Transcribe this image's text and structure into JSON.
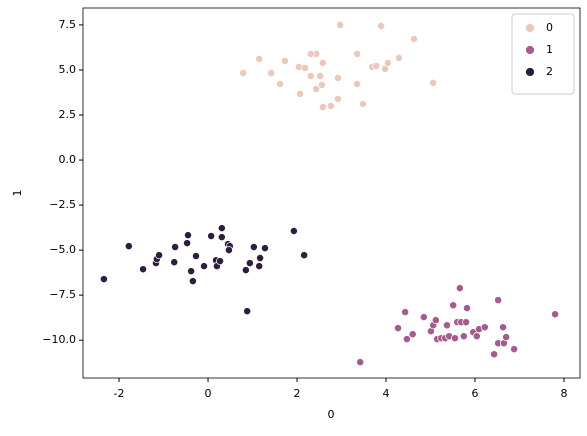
{
  "chart_data": {
    "type": "scatter",
    "xlabel": "0",
    "ylabel": "1",
    "xlim": [
      -2.81,
      8.36
    ],
    "ylim": [
      -12.1,
      8.44
    ],
    "xticks": [
      -2,
      0,
      2,
      4,
      6,
      8
    ],
    "yticks": [
      {
        "value": -10,
        "label": "−10.0"
      },
      {
        "value": -7.5,
        "label": "−7.5"
      },
      {
        "value": -5,
        "label": "−5.0"
      },
      {
        "value": -2.5,
        "label": "−2.5"
      },
      {
        "value": 0,
        "label": "0.0"
      },
      2.5,
      {
        "value": 5,
        "label": "5.0"
      },
      7.5
    ],
    "legend": "upper right",
    "series": [
      {
        "name": "0",
        "color": "#ebc7bc",
        "x": [
          0.79,
          1.15,
          1.42,
          1.62,
          1.73,
          2.04,
          2.07,
          2.18,
          2.31,
          2.43,
          2.31,
          2.43,
          2.52,
          2.58,
          2.56,
          2.58,
          2.76,
          2.92,
          2.92,
          2.97,
          3.35,
          3.35,
          3.48,
          3.69,
          3.78,
          3.89,
          3.98,
          4.04,
          4.29,
          4.63,
          5.06
        ],
        "y": [
          4.83,
          5.61,
          4.83,
          4.22,
          5.5,
          5.17,
          3.67,
          5.11,
          4.67,
          5.89,
          5.89,
          3.94,
          4.67,
          5.39,
          4.17,
          2.94,
          3.0,
          3.39,
          4.56,
          7.5,
          5.89,
          4.22,
          3.11,
          5.17,
          5.22,
          7.44,
          5.06,
          5.39,
          5.67,
          6.72,
          4.28
        ]
      },
      {
        "name": "1",
        "color": "#a35c8c",
        "x": [
          3.42,
          4.27,
          4.43,
          4.47,
          4.6,
          4.85,
          5.01,
          5.06,
          5.12,
          5.15,
          5.24,
          5.33,
          5.37,
          5.42,
          5.51,
          5.55,
          5.6,
          5.66,
          5.69,
          5.75,
          5.8,
          5.82,
          5.96,
          6.04,
          6.09,
          6.22,
          6.43,
          6.52,
          6.52,
          6.65,
          6.63,
          6.7,
          6.88,
          7.8
        ],
        "y": [
          -11.22,
          -9.33,
          -8.44,
          -9.94,
          -9.67,
          -8.72,
          -9.5,
          -9.17,
          -8.89,
          -9.94,
          -9.89,
          -9.89,
          -9.17,
          -9.78,
          -8.06,
          -9.89,
          -9.0,
          -7.11,
          -9.0,
          -9.78,
          -9.0,
          -8.22,
          -9.56,
          -9.78,
          -9.39,
          -9.28,
          -10.78,
          -10.17,
          -7.78,
          -10.17,
          -9.28,
          -9.83,
          -10.5,
          -8.56
        ]
      },
      {
        "name": "2",
        "color": "#2d1e3e",
        "x": [
          -2.34,
          -1.78,
          -1.46,
          -1.17,
          -1.15,
          -1.1,
          -0.76,
          -0.74,
          -0.47,
          -0.45,
          -0.38,
          -0.34,
          -0.27,
          -0.09,
          0.07,
          0.18,
          0.2,
          0.27,
          0.31,
          0.31,
          0.45,
          0.49,
          0.47,
          0.85,
          0.88,
          0.94,
          1.03,
          1.15,
          1.17,
          1.28,
          1.93,
          2.16
        ],
        "y": [
          -6.61,
          -4.78,
          -6.06,
          -5.72,
          -5.5,
          -5.28,
          -5.67,
          -4.83,
          -4.61,
          -4.17,
          -6.17,
          -6.72,
          -5.33,
          -5.89,
          -4.22,
          -5.56,
          -5.89,
          -5.61,
          -3.78,
          -4.28,
          -4.67,
          -4.78,
          -5.0,
          -6.11,
          -8.39,
          -5.72,
          -4.83,
          -5.89,
          -5.44,
          -4.89,
          -3.94,
          -5.28
        ]
      }
    ]
  }
}
